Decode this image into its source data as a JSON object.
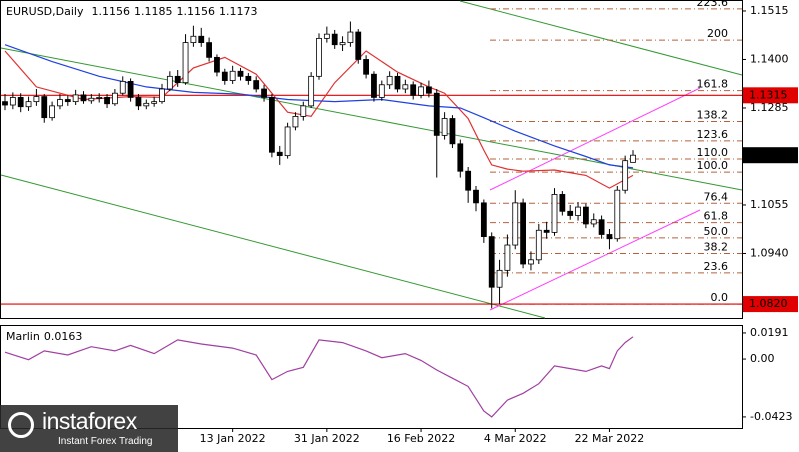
{
  "header": {
    "symbol": "EURUSD,Daily"
  },
  "logo": {
    "name": "instaforex",
    "tagline": "Instant Forex Trading"
  },
  "chart_data": [
    {
      "type": "candlestick",
      "categories": [
        null,
        null,
        null,
        null,
        null,
        null,
        null,
        null,
        null,
        null,
        null,
        null,
        null,
        null,
        null,
        null,
        null,
        null,
        null,
        null,
        null,
        null,
        null,
        null,
        null,
        null,
        null,
        null,
        null,
        "13 Jan 2022",
        null,
        null,
        null,
        null,
        null,
        null,
        null,
        null,
        null,
        null,
        null,
        "31 Jan 2022",
        null,
        null,
        null,
        null,
        null,
        null,
        null,
        null,
        null,
        null,
        null,
        "16 Feb 2022",
        null,
        null,
        null,
        null,
        null,
        null,
        null,
        null,
        null,
        null,
        null,
        "4 Mar 2022",
        null,
        null,
        null,
        null,
        null,
        null,
        null,
        null,
        null,
        null,
        null,
        "22 Mar 2022",
        null,
        null,
        null
      ],
      "open": [
        1.13,
        1.1292,
        1.131,
        1.1288,
        1.13,
        1.1312,
        1.1262,
        1.129,
        1.1305,
        1.13,
        1.1316,
        1.1302,
        1.1308,
        1.131,
        1.1295,
        1.132,
        1.1348,
        1.131,
        1.129,
        1.1296,
        1.13,
        1.133,
        1.136,
        1.1345,
        1.144,
        1.1455,
        1.144,
        1.1405,
        1.137,
        1.135,
        1.1372,
        1.136,
        1.135,
        1.133,
        1.131,
        1.118,
        1.1172,
        1.124,
        1.1265,
        1.129,
        1.136,
        1.145,
        1.146,
        1.1435,
        1.144,
        1.1465,
        1.14,
        1.1365,
        1.131,
        1.134,
        1.136,
        1.133,
        1.134,
        1.1315,
        1.1335,
        1.132,
        1.122,
        1.126,
        1.12,
        1.1135,
        1.109,
        1.106,
        1.098,
        1.086,
        1.09,
        1.096,
        1.106,
        1.0915,
        1.0925,
        1.0995,
        1.099,
        1.108,
        1.104,
        1.103,
        1.105,
        1.101,
        1.102,
        1.0985,
        1.0975,
        1.109,
        1.1156
      ],
      "high": [
        1.1318,
        1.1322,
        1.132,
        1.1312,
        1.133,
        1.1318,
        1.13,
        1.1318,
        1.1315,
        1.1328,
        1.1325,
        1.1318,
        1.132,
        1.1318,
        1.133,
        1.136,
        1.1355,
        1.1318,
        1.1305,
        1.1312,
        1.1342,
        1.1372,
        1.1375,
        1.146,
        1.148,
        1.1475,
        1.1452,
        1.1412,
        1.1378,
        1.1385,
        1.138,
        1.1368,
        1.136,
        1.134,
        1.1318,
        1.1195,
        1.125,
        1.1275,
        1.13,
        1.137,
        1.1462,
        1.1478,
        1.147,
        1.1455,
        1.149,
        1.1472,
        1.141,
        1.1372,
        1.135,
        1.1372,
        1.1368,
        1.1352,
        1.1348,
        1.1345,
        1.135,
        1.133,
        1.1275,
        1.1268,
        1.121,
        1.1145,
        1.11,
        1.1068,
        1.099,
        1.0925,
        1.0985,
        1.109,
        1.107,
        1.0945,
        1.101,
        1.1015,
        1.1095,
        1.1088,
        1.1055,
        1.1062,
        1.1058,
        1.1035,
        1.103,
        1.0998,
        1.11,
        1.1172,
        1.1185
      ],
      "low": [
        1.128,
        1.1282,
        1.1275,
        1.1278,
        1.129,
        1.125,
        1.1255,
        1.1282,
        1.129,
        1.1292,
        1.1295,
        1.1295,
        1.1298,
        1.1285,
        1.129,
        1.1315,
        1.13,
        1.128,
        1.1282,
        1.1288,
        1.1295,
        1.1325,
        1.1335,
        1.134,
        1.143,
        1.143,
        1.1395,
        1.136,
        1.134,
        1.1342,
        1.135,
        1.134,
        1.1322,
        1.13,
        1.1168,
        1.115,
        1.1165,
        1.1232,
        1.1255,
        1.1285,
        1.1352,
        1.144,
        1.1425,
        1.142,
        1.143,
        1.139,
        1.1355,
        1.13,
        1.1302,
        1.133,
        1.1322,
        1.132,
        1.1305,
        1.1308,
        1.131,
        1.112,
        1.121,
        1.119,
        1.112,
        1.106,
        1.104,
        1.0965,
        1.081,
        1.082,
        1.0885,
        1.095,
        1.0905,
        1.09,
        1.0915,
        1.0975,
        1.0982,
        1.103,
        1.102,
        1.1018,
        1.1,
        1.1002,
        1.0975,
        1.095,
        1.0968,
        1.1082,
        1.1156
      ],
      "close": [
        1.1292,
        1.131,
        1.1288,
        1.13,
        1.1312,
        1.1262,
        1.129,
        1.1305,
        1.13,
        1.1316,
        1.1302,
        1.1308,
        1.131,
        1.1295,
        1.132,
        1.1348,
        1.131,
        1.129,
        1.1296,
        1.13,
        1.133,
        1.136,
        1.1345,
        1.144,
        1.1455,
        1.144,
        1.1405,
        1.137,
        1.135,
        1.1372,
        1.136,
        1.135,
        1.133,
        1.131,
        1.118,
        1.1172,
        1.124,
        1.1265,
        1.129,
        1.136,
        1.145,
        1.146,
        1.1435,
        1.144,
        1.1465,
        1.14,
        1.1365,
        1.131,
        1.134,
        1.136,
        1.133,
        1.134,
        1.1315,
        1.1335,
        1.132,
        1.122,
        1.126,
        1.12,
        1.1135,
        1.109,
        1.106,
        1.098,
        1.086,
        1.09,
        1.096,
        1.106,
        1.0915,
        1.0925,
        1.0995,
        1.099,
        1.108,
        1.104,
        1.103,
        1.105,
        1.101,
        1.102,
        1.0985,
        1.0975,
        1.109,
        1.116,
        1.1173
      ],
      "up_color": "#ffffff",
      "down_color": "#000000",
      "wick_color": "#000000",
      "series": [
        {
          "color": "#e03030",
          "x": [
            0,
            4,
            10,
            16,
            20,
            24,
            28,
            32,
            36,
            39,
            42,
            46,
            50,
            54,
            56,
            59,
            61,
            62,
            64,
            66,
            70,
            74,
            77,
            80
          ],
          "values": [
            1.142,
            1.1335,
            1.1305,
            1.1312,
            1.131,
            1.138,
            1.1405,
            1.1365,
            1.1275,
            1.1265,
            1.1345,
            1.142,
            1.137,
            1.1335,
            1.132,
            1.126,
            1.1185,
            1.115,
            1.114,
            1.1135,
            1.1138,
            1.1125,
            1.1095,
            1.1125
          ]
        },
        {
          "color": "#2040e0",
          "x": [
            0,
            6,
            12,
            18,
            24,
            30,
            36,
            42,
            48,
            54,
            58,
            61,
            65,
            70,
            74,
            77,
            80
          ],
          "values": [
            1.1435,
            1.1395,
            1.136,
            1.1335,
            1.1322,
            1.1318,
            1.1305,
            1.13,
            1.1305,
            1.129,
            1.1285,
            1.1262,
            1.123,
            1.1195,
            1.117,
            1.115,
            1.1143
          ]
        }
      ],
      "hlines": [
        1.1315,
        {
          "value": 1.082,
          "label": "1.0820"
        }
      ],
      "hline_color": "#e00000",
      "fib": {
        "color": "#b5603a",
        "levels": [
          {
            "value": 1.082,
            "label": "0.0"
          },
          {
            "value": 1.0894,
            "label": "23.6"
          },
          {
            "value": 1.094,
            "label": "38.2"
          },
          {
            "value": 1.0977,
            "label": "50.0"
          },
          {
            "value": 1.1013,
            "label": "61.8"
          },
          {
            "value": 1.1059,
            "label": "76.4"
          },
          {
            "value": 1.1133,
            "label": "100.0"
          },
          {
            "value": 1.1164,
            "label": "110.0"
          },
          {
            "value": 1.1207,
            "label": "123.6"
          },
          {
            "value": 1.1253,
            "label": "138.2"
          },
          {
            "value": 1.1326,
            "label": "161.8"
          },
          {
            "value": 1.1446,
            "label": "200"
          },
          {
            "value": 1.152,
            "label": "223.6"
          }
        ]
      },
      "ylim": [
        1.0787,
        1.1541
      ],
      "yticks": [
        1.1515,
        {
          "value": 1.14,
          "label": "1.1400"
        },
        1.1285,
        1.1055,
        {
          "value": 1.094,
          "label": "1.0940"
        }
      ]
    },
    {
      "type": "line",
      "title": "Marlin",
      "series": [
        {
          "color": "#a040a0",
          "x": [
            0,
            3,
            5,
            8,
            11,
            14,
            16,
            19,
            22,
            25,
            29,
            32,
            34,
            36,
            38,
            40,
            43,
            46,
            48,
            51,
            53,
            55,
            57,
            59,
            61,
            62,
            64,
            66,
            68,
            70,
            72,
            74,
            76,
            77,
            78,
            79,
            80
          ],
          "values": [
            0.005,
            -0.0005,
            0.006,
            0.003,
            0.009,
            0.006,
            0.01,
            0.004,
            0.014,
            0.011,
            0.008,
            0.003,
            -0.015,
            -0.009,
            -0.006,
            0.014,
            0.012,
            0.006,
            0.001,
            0.004,
            -0.001,
            -0.008,
            -0.014,
            -0.02,
            -0.038,
            -0.0423,
            -0.03,
            -0.025,
            -0.018,
            -0.005,
            -0.007,
            -0.009,
            -0.005,
            -0.007,
            0.006,
            0.012,
            0.0163
          ]
        }
      ],
      "ylim": [
        -0.0504,
        0.0249
      ],
      "yticks": [
        0.0191,
        {
          "value": 0,
          "label": "0.00"
        },
        -0.0423
      ]
    }
  ]
}
